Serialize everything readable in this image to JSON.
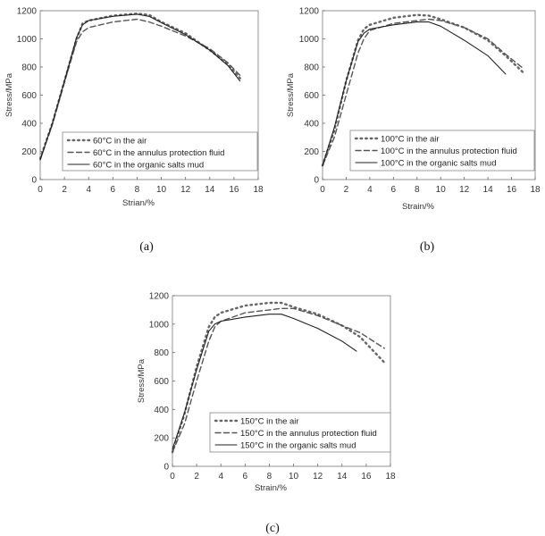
{
  "chart_data": [
    {
      "type": "line",
      "panel_label": "(a)",
      "xlabel": "Strian/%",
      "ylabel": "Stress/MPa",
      "xlim": [
        0,
        18
      ],
      "ylim": [
        0,
        1200
      ],
      "xticks": [
        "0",
        "2",
        "4",
        "6",
        "8",
        "10",
        "12",
        "14",
        "16",
        "18"
      ],
      "yticks": [
        "0",
        "200",
        "400",
        "600",
        "800",
        "1000",
        "1200"
      ],
      "legend_position": "bottom-left",
      "series": [
        {
          "name": "60°C in the air",
          "style": "dotted",
          "color": "#666666",
          "points": [
            [
              0,
              150
            ],
            [
              1,
              400
            ],
            [
              2,
              700
            ],
            [
              3,
              1000
            ],
            [
              3.5,
              1110
            ],
            [
              4,
              1130
            ],
            [
              6,
              1165
            ],
            [
              8,
              1180
            ],
            [
              9,
              1170
            ],
            [
              10,
              1120
            ],
            [
              12,
              1040
            ],
            [
              14,
              920
            ],
            [
              15.5,
              820
            ],
            [
              16.5,
              720
            ]
          ]
        },
        {
          "name": "60°C in the annulus protection fluid",
          "style": "dashed",
          "color": "#555555",
          "points": [
            [
              0,
              140
            ],
            [
              1,
              390
            ],
            [
              2,
              690
            ],
            [
              3,
              980
            ],
            [
              3.5,
              1050
            ],
            [
              4,
              1080
            ],
            [
              6,
              1120
            ],
            [
              8,
              1140
            ],
            [
              9,
              1120
            ],
            [
              10,
              1090
            ],
            [
              12,
              1020
            ],
            [
              14,
              930
            ],
            [
              15.5,
              830
            ],
            [
              16.5,
              740
            ]
          ]
        },
        {
          "name": "60°C in the organic salts mud",
          "style": "solid",
          "color": "#222222",
          "points": [
            [
              0,
              140
            ],
            [
              1,
              400
            ],
            [
              2,
              700
            ],
            [
              3,
              1010
            ],
            [
              3.5,
              1100
            ],
            [
              4,
              1130
            ],
            [
              6,
              1160
            ],
            [
              8,
              1175
            ],
            [
              9,
              1160
            ],
            [
              10,
              1115
            ],
            [
              12,
              1030
            ],
            [
              14,
              920
            ],
            [
              15.5,
              810
            ],
            [
              16.5,
              700
            ]
          ]
        }
      ]
    },
    {
      "type": "line",
      "panel_label": "(b)",
      "xlabel": "Strain/%",
      "ylabel": "Stress/MPa",
      "xlim": [
        0,
        18
      ],
      "ylim": [
        0,
        1200
      ],
      "xticks": [
        "0",
        "2",
        "4",
        "6",
        "8",
        "10",
        "12",
        "14",
        "16",
        "18"
      ],
      "yticks": [
        "0",
        "200",
        "400",
        "600",
        "800",
        "1000",
        "1200"
      ],
      "legend_position": "bottom-left",
      "series": [
        {
          "name": "100°C in the air",
          "style": "dotted",
          "color": "#666666",
          "points": [
            [
              0,
              100
            ],
            [
              1,
              350
            ],
            [
              2,
              700
            ],
            [
              3,
              990
            ],
            [
              3.5,
              1070
            ],
            [
              4,
              1100
            ],
            [
              6,
              1150
            ],
            [
              8,
              1170
            ],
            [
              9,
              1165
            ],
            [
              10,
              1140
            ],
            [
              12,
              1080
            ],
            [
              14,
              990
            ],
            [
              15.5,
              880
            ],
            [
              17,
              760
            ]
          ]
        },
        {
          "name": "100°C in the annulus protection fluid",
          "style": "dashed",
          "color": "#555555",
          "points": [
            [
              0,
              100
            ],
            [
              1,
              300
            ],
            [
              2,
              600
            ],
            [
              3,
              900
            ],
            [
              3.5,
              1000
            ],
            [
              4,
              1060
            ],
            [
              6,
              1110
            ],
            [
              8,
              1130
            ],
            [
              9,
              1140
            ],
            [
              10,
              1130
            ],
            [
              12,
              1080
            ],
            [
              14,
              1000
            ],
            [
              15.5,
              890
            ],
            [
              17,
              790
            ]
          ]
        },
        {
          "name": "100°C in the organic salts mud",
          "style": "solid",
          "color": "#222222",
          "points": [
            [
              0,
              100
            ],
            [
              1,
              370
            ],
            [
              2,
              700
            ],
            [
              3,
              980
            ],
            [
              3.5,
              1040
            ],
            [
              4,
              1070
            ],
            [
              6,
              1100
            ],
            [
              8,
              1120
            ],
            [
              9,
              1120
            ],
            [
              10,
              1090
            ],
            [
              12,
              990
            ],
            [
              14,
              880
            ],
            [
              15.5,
              750
            ]
          ]
        }
      ]
    },
    {
      "type": "line",
      "panel_label": "(c)",
      "xlabel": "Strain/%",
      "ylabel": "Stress/MPa",
      "xlim": [
        0,
        18
      ],
      "ylim": [
        0,
        1200
      ],
      "xticks": [
        "0",
        "2",
        "4",
        "6",
        "8",
        "10",
        "12",
        "14",
        "16",
        "18"
      ],
      "yticks": [
        "0",
        "200",
        "400",
        "600",
        "800",
        "1000",
        "1200"
      ],
      "legend_position": "bottom-left",
      "series": [
        {
          "name": "150°C in the air",
          "style": "dotted",
          "color": "#666666",
          "points": [
            [
              0,
              100
            ],
            [
              1,
              370
            ],
            [
              2,
              700
            ],
            [
              3,
              980
            ],
            [
              3.5,
              1050
            ],
            [
              4,
              1080
            ],
            [
              6,
              1130
            ],
            [
              8,
              1150
            ],
            [
              9,
              1150
            ],
            [
              10,
              1120
            ],
            [
              12,
              1070
            ],
            [
              14,
              990
            ],
            [
              15.5,
              910
            ],
            [
              17.5,
              730
            ]
          ]
        },
        {
          "name": "150°C in the annulus protection fluid",
          "style": "dashed",
          "color": "#555555",
          "points": [
            [
              0,
              100
            ],
            [
              1,
              300
            ],
            [
              2,
              600
            ],
            [
              3,
              880
            ],
            [
              3.5,
              980
            ],
            [
              4,
              1020
            ],
            [
              6,
              1080
            ],
            [
              8,
              1100
            ],
            [
              9,
              1110
            ],
            [
              10,
              1110
            ],
            [
              12,
              1060
            ],
            [
              14,
              990
            ],
            [
              15.5,
              940
            ],
            [
              17.5,
              830
            ]
          ]
        },
        {
          "name": "150°C in the organic salts mud",
          "style": "solid",
          "color": "#222222",
          "points": [
            [
              0,
              120
            ],
            [
              1,
              380
            ],
            [
              2,
              680
            ],
            [
              3,
              950
            ],
            [
              3.5,
              1000
            ],
            [
              4,
              1020
            ],
            [
              6,
              1050
            ],
            [
              8,
              1070
            ],
            [
              9,
              1070
            ],
            [
              10,
              1040
            ],
            [
              12,
              970
            ],
            [
              14,
              880
            ],
            [
              15.2,
              810
            ]
          ]
        }
      ]
    }
  ]
}
